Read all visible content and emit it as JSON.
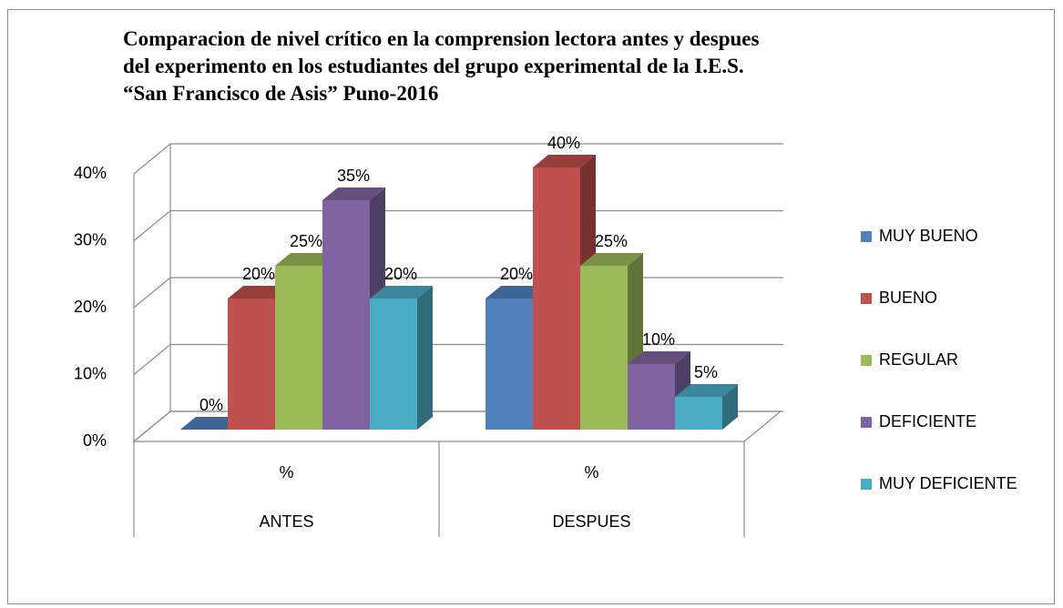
{
  "chart_data": {
    "type": "bar3d",
    "title": "Comparacion de nivel crítico en la comprension lectora antes y despues del experimento en los estudiantes del grupo experimental de la I.E.S. “San Francisco de Asis” Puno-2016",
    "categories": [
      "ANTES",
      "DESPUES"
    ],
    "category_sublabels": [
      "%",
      "%"
    ],
    "series": [
      {
        "name": "MUY BUENO",
        "color": "#4f81bd",
        "values": [
          0,
          20
        ],
        "value_labels": [
          "0%",
          "20%"
        ]
      },
      {
        "name": "BUENO",
        "color": "#c0504d",
        "values": [
          20,
          40
        ],
        "value_labels": [
          "20%",
          "40%"
        ]
      },
      {
        "name": "REGULAR",
        "color": "#9bbb59",
        "values": [
          25,
          25
        ],
        "value_labels": [
          "25%",
          "25%"
        ]
      },
      {
        "name": "DEFICIENTE",
        "color": "#8064a2",
        "values": [
          35,
          10
        ],
        "value_labels": [
          "35%",
          "10%"
        ]
      },
      {
        "name": "MUY DEFICIENTE",
        "color": "#4bacc6",
        "values": [
          20,
          5
        ],
        "value_labels": [
          "20%",
          "5%"
        ]
      }
    ],
    "ylim": [
      0,
      40
    ],
    "yticks": [
      {
        "value": 0,
        "label": "0%"
      },
      {
        "value": 10,
        "label": "10%"
      },
      {
        "value": 20,
        "label": "20%"
      },
      {
        "value": 30,
        "label": "30%"
      },
      {
        "value": 40,
        "label": "40%"
      }
    ],
    "grid": true,
    "legend": "right"
  }
}
